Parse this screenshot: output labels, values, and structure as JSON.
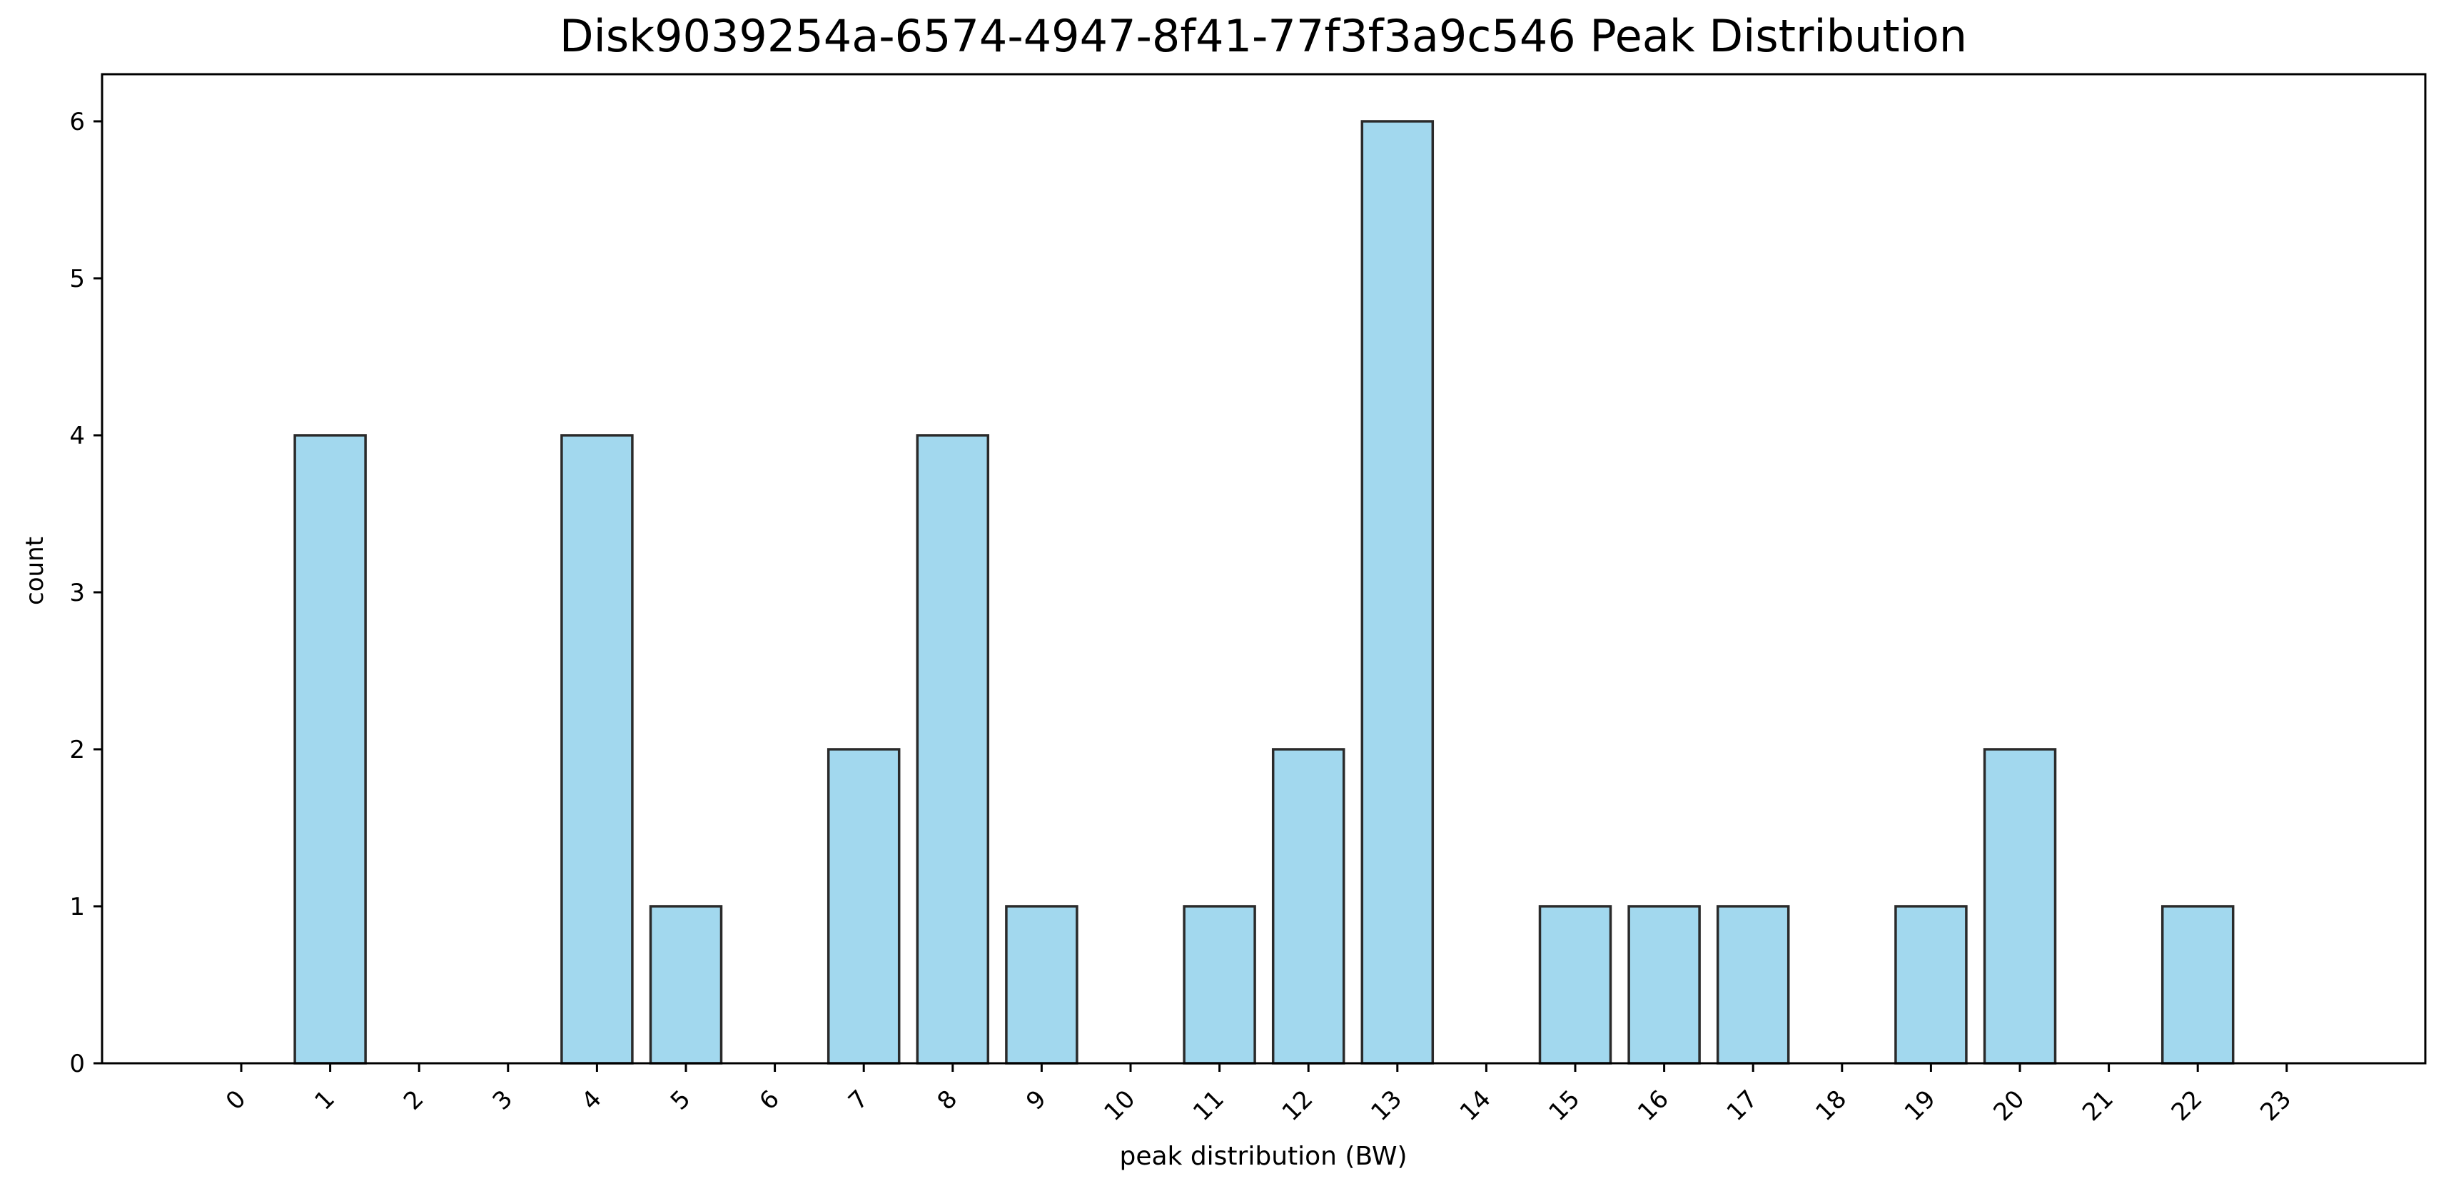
{
  "chart_data": {
    "type": "bar",
    "title": "Disk9039254a-6574-4947-8f41-77f3f3a9c546 Peak Distribution",
    "xlabel": "peak distribution (BW)",
    "ylabel": "count",
    "categories": [
      "0",
      "1",
      "2",
      "3",
      "4",
      "5",
      "6",
      "7",
      "8",
      "9",
      "10",
      "11",
      "12",
      "13",
      "14",
      "15",
      "16",
      "17",
      "18",
      "19",
      "20",
      "21",
      "22",
      "23"
    ],
    "values": [
      0,
      4,
      0,
      0,
      4,
      1,
      0,
      2,
      4,
      1,
      0,
      1,
      2,
      6,
      0,
      1,
      1,
      1,
      0,
      1,
      2,
      0,
      1,
      0
    ],
    "ylim": [
      0,
      6.3
    ],
    "yticks": [
      "0",
      "1",
      "2",
      "3",
      "4",
      "5",
      "6"
    ],
    "xtick_rotation": 45,
    "grid": false,
    "legend": "none",
    "bar_color": "#a2d8ee",
    "bar_edge_color": "#2a2a2a"
  }
}
